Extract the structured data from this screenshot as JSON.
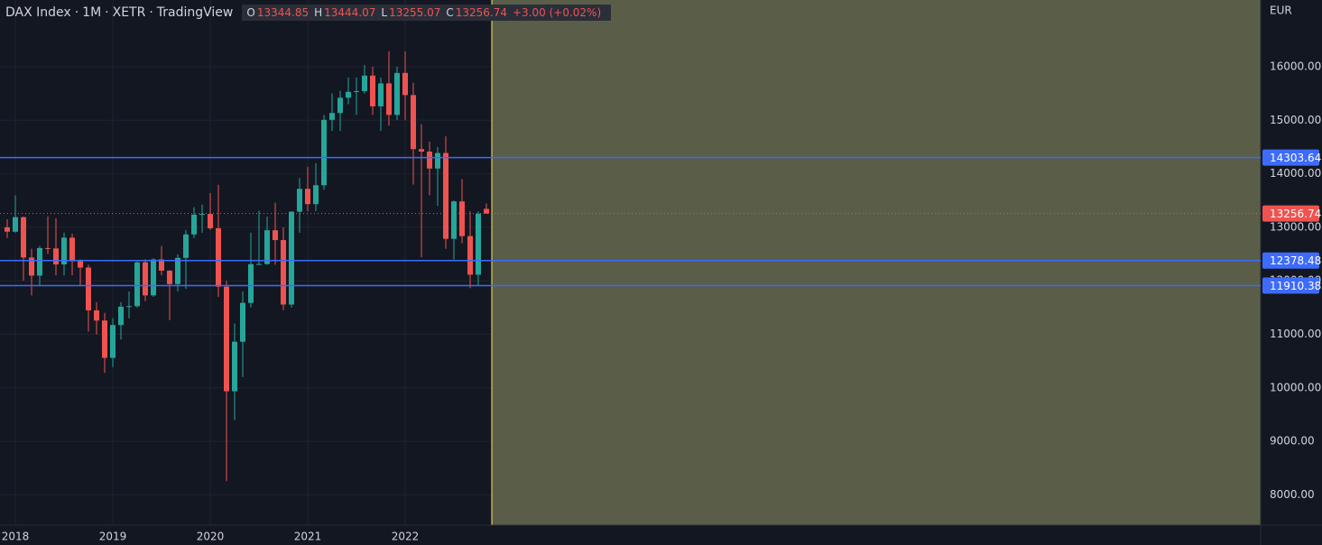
{
  "chart_data": {
    "type": "candlestick",
    "header": {
      "symbol": "DAX Index",
      "interval": "1M",
      "exchange": "XETR",
      "source": "TradingView",
      "open_key": "O",
      "high_key": "H",
      "low_key": "L",
      "close_key": "C",
      "change_label": "+3.00 (+0.02%)"
    },
    "currency": "EUR",
    "categories": [
      null,
      "2018",
      null,
      null,
      null,
      null,
      null,
      null,
      null,
      null,
      null,
      null,
      null,
      "2019",
      null,
      null,
      null,
      null,
      null,
      null,
      null,
      null,
      null,
      null,
      null,
      "2020",
      null,
      null,
      null,
      null,
      null,
      null,
      null,
      null,
      null,
      null,
      null,
      "2021",
      null,
      null,
      null,
      null,
      null,
      null,
      null,
      null,
      null,
      null,
      null,
      "2022",
      null,
      null,
      null,
      null,
      null,
      null,
      null,
      null,
      null,
      null
    ],
    "open": [
      13000,
      12918,
      13189,
      12435,
      12097,
      12612,
      12605,
      12306,
      12806,
      12364,
      12247,
      11447,
      11257,
      10559,
      11173,
      11516,
      11526,
      12344,
      11727,
      12399,
      12189,
      11939,
      12428,
      12867,
      13236,
      13249,
      12982,
      11890,
      9936,
      10862,
      11587,
      12311,
      12313,
      12945,
      12761,
      11556,
      13291,
      13719,
      13433,
      13786,
      15008,
      15136,
      15421,
      15531,
      15544,
      15835,
      15261,
      15689,
      15100,
      15885,
      15471,
      14461,
      14415,
      14098,
      14388,
      12784,
      13484,
      12835,
      12114,
      13344.85
    ],
    "high": [
      13150,
      13597,
      13200,
      12600,
      12650,
      13205,
      13170,
      12900,
      12880,
      12400,
      12300,
      11600,
      11400,
      11300,
      11600,
      11800,
      12360,
      12400,
      12420,
      12650,
      12200,
      12494,
      12950,
      13374,
      13425,
      13640,
      13795,
      12000,
      11200,
      11800,
      12900,
      13313,
      13200,
      13460,
      13000,
      13300,
      13920,
      14130,
      14200,
      15100,
      15500,
      15550,
      15800,
      15800,
      16030,
      16000,
      15800,
      16290,
      16000,
      16285,
      15700,
      14925,
      14600,
      14500,
      14700,
      13500,
      13900,
      13300,
      13300,
      13444.07
    ],
    "low": [
      12800,
      12900,
      12003,
      11727,
      11900,
      12500,
      12100,
      12100,
      12100,
      11900,
      11051,
      11000,
      10279,
      10386,
      10900,
      11300,
      11500,
      11620,
      11700,
      12100,
      11266,
      11800,
      11850,
      12800,
      12900,
      12950,
      11700,
      8256,
      9400,
      10200,
      11500,
      12300,
      12300,
      12300,
      11450,
      11500,
      12900,
      13300,
      13300,
      13700,
      14800,
      14800,
      15300,
      15100,
      15500,
      15100,
      14800,
      14900,
      15000,
      15000,
      13800,
      12439,
      13600,
      13400,
      12600,
      12400,
      12700,
      11863,
      11900,
      13255.07
    ],
    "close": [
      12918,
      13189,
      12435,
      12097,
      12612,
      12605,
      12306,
      12806,
      12364,
      12247,
      11447,
      11257,
      10559,
      11173,
      11516,
      11526,
      12344,
      11727,
      12399,
      12189,
      11939,
      12428,
      12867,
      13236,
      13249,
      12982,
      11890,
      9936,
      10862,
      11587,
      12311,
      12313,
      12945,
      12761,
      11556,
      13291,
      13719,
      13433,
      13786,
      15008,
      15136,
      15421,
      15531,
      15544,
      15835,
      15261,
      15689,
      15100,
      15885,
      15471,
      14461,
      14415,
      14098,
      14388,
      12784,
      13484,
      12835,
      12114,
      13253.74,
      13256.74
    ],
    "up_color": "#26a69a",
    "down_color": "#ef5350",
    "ylim": [
      7433,
      17248
    ],
    "yticks": [
      {
        "value": 8000,
        "label": "8000.00"
      },
      {
        "value": 9000,
        "label": "9000.00"
      },
      {
        "value": 10000,
        "label": "10000.00"
      },
      {
        "value": 11000,
        "label": "11000.00"
      },
      {
        "value": 12000,
        "label": "12000.00"
      },
      {
        "value": 13000,
        "label": "13000.00"
      },
      {
        "value": 14000,
        "label": "14000.00"
      },
      {
        "value": 15000,
        "label": "15000.00"
      },
      {
        "value": 16000,
        "label": "16000.00"
      }
    ],
    "grid": true,
    "hlines": [
      {
        "value": 14303.64,
        "color": "#3d6bfa"
      },
      {
        "value": 12378.48,
        "color": "#3d6bfa"
      },
      {
        "value": 11910.38,
        "color": "#3d6bfa"
      }
    ],
    "last_price_color": "#ef5350",
    "shade_color": "#5a5e48",
    "marker_line_color": "#f5e663"
  }
}
